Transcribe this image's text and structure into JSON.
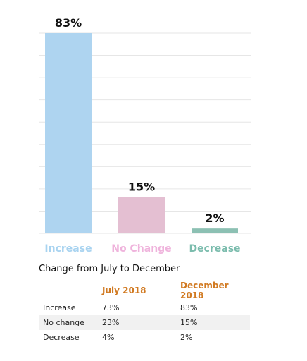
{
  "chart_data": {
    "type": "bar",
    "categories": [
      "Increase",
      "No Change",
      "Decrease"
    ],
    "values": [
      83,
      15,
      2
    ],
    "value_labels": [
      "83%",
      "15%",
      "2%"
    ],
    "bar_colors": [
      "#aed4f0",
      "#e4bfd2",
      "#8cc0b3"
    ],
    "label_colors": [
      "#a8d3f0",
      "#efb3dc",
      "#7bbcad"
    ],
    "ylim": [
      0,
      83
    ],
    "grid": true,
    "gridline_color": "#e6e6e6"
  },
  "table": {
    "title": "Change from July to December",
    "header_color": "#d17a22",
    "columns": [
      "",
      "July 2018",
      "December 2018"
    ],
    "rows": [
      [
        "Increase",
        "73%",
        "83%"
      ],
      [
        "No change",
        "23%",
        "15%"
      ],
      [
        "Decrease",
        "4%",
        "2%"
      ]
    ]
  }
}
